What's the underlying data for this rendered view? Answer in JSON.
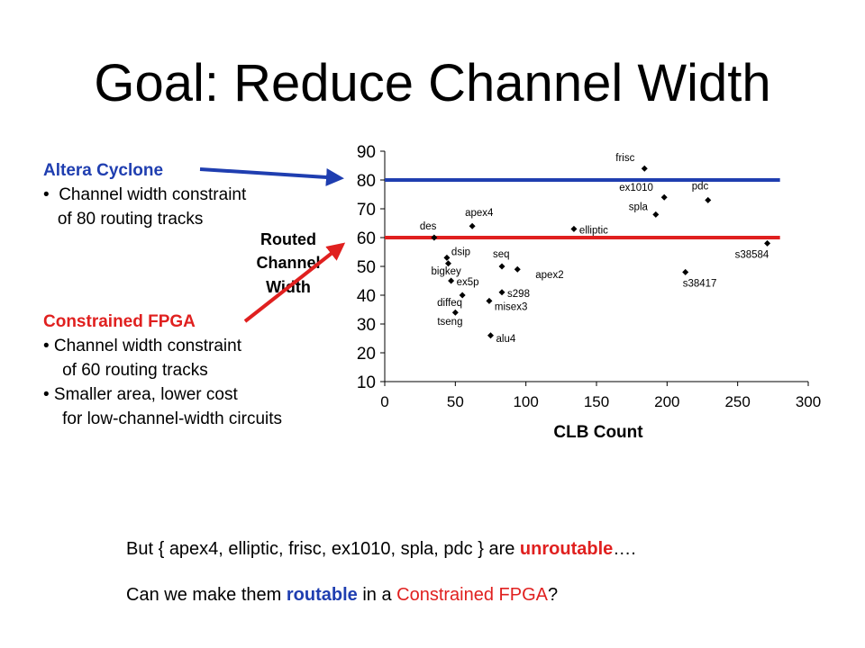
{
  "title": "Goal: Reduce Channel Width",
  "altera": {
    "head": "Altera Cyclone",
    "bullets": [
      "•  Channel width constraint",
      "   of 80 routing tracks"
    ]
  },
  "constrained": {
    "head": "Constrained FPGA",
    "bullets": [
      "• Channel width constraint",
      "    of 60 routing tracks",
      "• Smaller area, lower cost",
      "    for low-channel-width circuits"
    ]
  },
  "bottom": {
    "line1_pre": "But  { apex4, elliptic, frisc, ex1010, spla, pdc }  are ",
    "line1_em": "unroutable",
    "line1_post": "….",
    "line2_pre": "Can we make them ",
    "line2_em": "routable",
    "line2_mid": " in a ",
    "line2_red": "Constrained FPGA",
    "line2_post": "?"
  },
  "colors": {
    "blue": "#1f3eb0",
    "red": "#e0201f"
  },
  "chart_data": {
    "type": "scatter",
    "xlabel": "CLB Count",
    "ylabel": "Routed Channel Width",
    "xlim": [
      0,
      300
    ],
    "ylim": [
      10,
      90
    ],
    "xticks": [
      0,
      50,
      100,
      150,
      200,
      250,
      300
    ],
    "yticks": [
      10,
      20,
      30,
      40,
      50,
      60,
      70,
      80,
      90
    ],
    "grid": false,
    "hlines": [
      {
        "y": 80,
        "x_end": 280,
        "color": "#1f3eb0"
      },
      {
        "y": 60,
        "x_end": 280,
        "color": "#e0201f"
      }
    ],
    "points": [
      {
        "label": "frisc",
        "x": 184,
        "y": 84
      },
      {
        "label": "ex1010",
        "x": 198,
        "y": 74
      },
      {
        "label": "pdc",
        "x": 229,
        "y": 73
      },
      {
        "label": "spla",
        "x": 192,
        "y": 68
      },
      {
        "label": "apex4",
        "x": 62,
        "y": 64
      },
      {
        "label": "elliptic",
        "x": 134,
        "y": 63
      },
      {
        "label": "des",
        "x": 35,
        "y": 60
      },
      {
        "label": "s38584",
        "x": 271,
        "y": 58
      },
      {
        "label": "dsip",
        "x": 44,
        "y": 53
      },
      {
        "label": "bigkey",
        "x": 45,
        "y": 51
      },
      {
        "label": "seq",
        "x": 83,
        "y": 50
      },
      {
        "label": "apex2",
        "x": 94,
        "y": 49
      },
      {
        "label": "s38417",
        "x": 213,
        "y": 48
      },
      {
        "label": "ex5p",
        "x": 47,
        "y": 45
      },
      {
        "label": "s298",
        "x": 83,
        "y": 41
      },
      {
        "label": "diffeq",
        "x": 55,
        "y": 40
      },
      {
        "label": "misex3",
        "x": 74,
        "y": 38
      },
      {
        "label": "tseng",
        "x": 50,
        "y": 34
      },
      {
        "label": "alu4",
        "x": 75,
        "y": 26
      }
    ]
  }
}
